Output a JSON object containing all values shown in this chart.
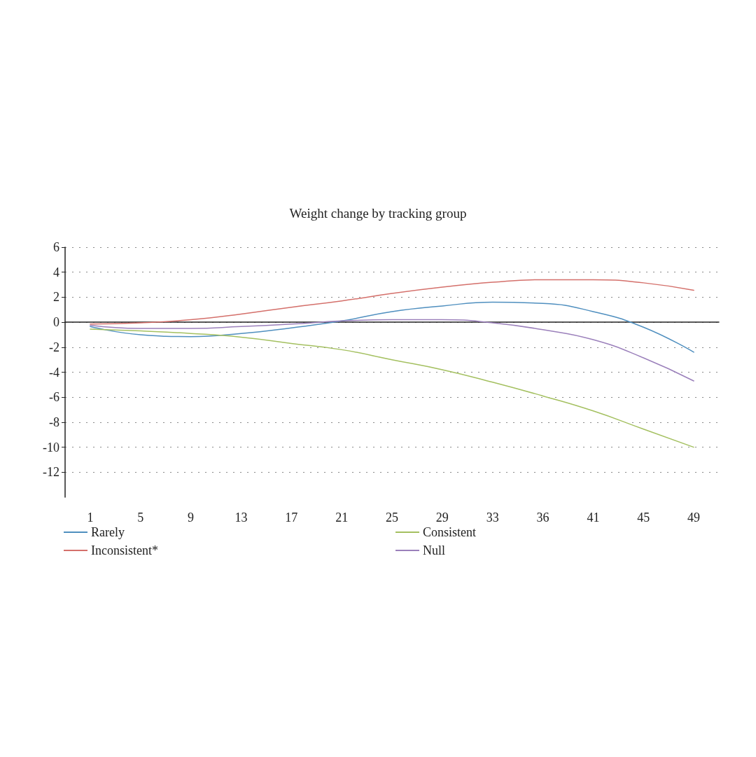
{
  "chart_data": {
    "type": "line",
    "title": "Weight change by tracking group",
    "categories": [
      "1",
      "5",
      "9",
      "13",
      "17",
      "21",
      "25",
      "29",
      "33",
      "36",
      "41",
      "45",
      "49"
    ],
    "series": [
      {
        "name": "Rarely",
        "color": "#4f8fbf",
        "values": [
          -0.35,
          -1.0,
          -1.15,
          -0.9,
          -0.45,
          0.1,
          0.85,
          1.3,
          1.6,
          1.5,
          0.85,
          -0.4,
          -2.4
        ]
      },
      {
        "name": "Inconsistent*",
        "color": "#d4706b",
        "values": [
          -0.15,
          -0.05,
          0.2,
          0.65,
          1.2,
          1.7,
          2.3,
          2.8,
          3.2,
          3.4,
          3.4,
          3.15,
          2.55
        ]
      },
      {
        "name": "Consistent",
        "color": "#a4c060",
        "values": [
          -0.55,
          -0.7,
          -0.9,
          -1.2,
          -1.7,
          -2.2,
          -3.0,
          -3.8,
          -4.8,
          -5.9,
          -7.1,
          -8.55,
          -10.0
        ]
      },
      {
        "name": "Null",
        "color": "#9b80bb",
        "values": [
          -0.25,
          -0.5,
          -0.5,
          -0.35,
          -0.15,
          0.1,
          0.2,
          0.2,
          -0.05,
          -0.6,
          -1.4,
          -2.85,
          -4.7
        ]
      }
    ],
    "ylim": [
      -14,
      6
    ],
    "yticks": [
      -12,
      -10,
      -8,
      -6,
      -4,
      -2,
      0,
      2,
      4,
      6
    ],
    "grid": "y",
    "legend": "bottom",
    "marker": "none",
    "line_style": "solid"
  }
}
